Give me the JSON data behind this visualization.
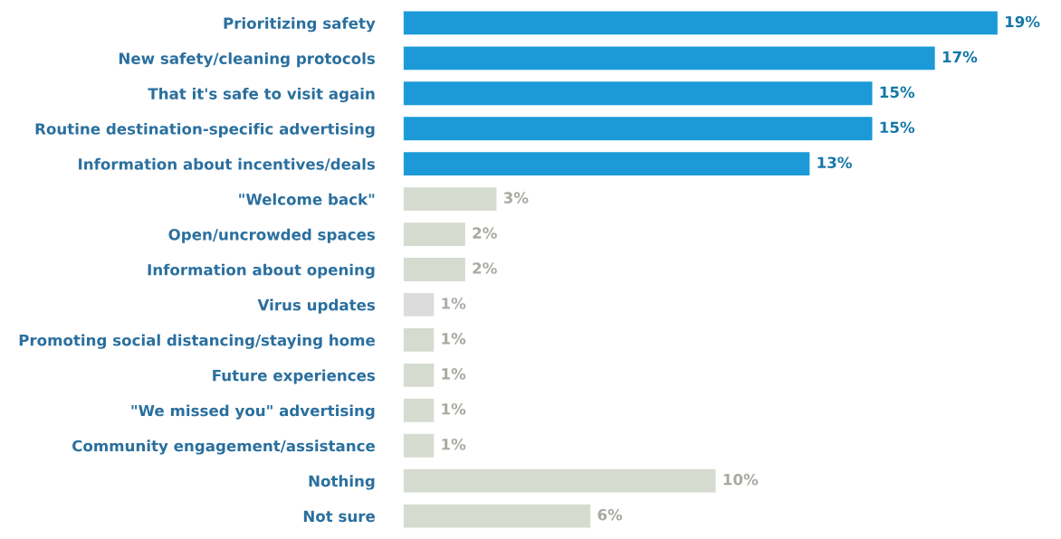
{
  "chart_data": {
    "type": "bar",
    "orientation": "horizontal",
    "grid": false,
    "legend": false,
    "value_labels": [
      "19%",
      "17%",
      "15%",
      "15%",
      "13%",
      "3%",
      "2%",
      "2%",
      "1%",
      "1%",
      "1%",
      "1%",
      "1%",
      "10%",
      "6%"
    ],
    "categories": [
      "Prioritizing safety",
      "New safety/cleaning protocols",
      "That it's safe to visit again",
      "Routine destination-specific advertising",
      "Information about incentives/deals",
      "\"Welcome back\"",
      "Open/uncrowded spaces",
      "Information about opening",
      "Virus updates",
      "Promoting social distancing/staying home",
      "Future experiences",
      "\"We missed you\" advertising",
      "Community engagement/assistance",
      "Nothing",
      "Not sure"
    ],
    "values": [
      19,
      17,
      15,
      15,
      13,
      3,
      2,
      2,
      1,
      1,
      1,
      1,
      1,
      10,
      6
    ],
    "colors": [
      "#1b9ad7",
      "#1b9ad7",
      "#1b9ad7",
      "#1b9ad7",
      "#1b9ad7",
      "#d5dbcf",
      "#d5dbcf",
      "#d5dbcf",
      "#dcdcdc",
      "#d5dbcf",
      "#d5dbcf",
      "#d5dbcf",
      "#d5dbcf",
      "#d5dbcf",
      "#d5dbcf"
    ]
  }
}
